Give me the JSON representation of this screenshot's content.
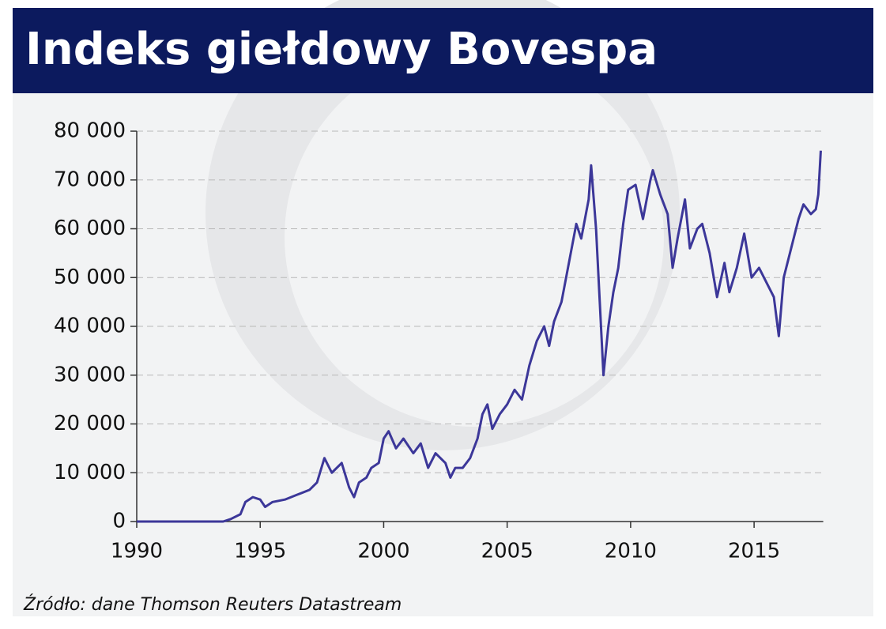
{
  "chart_data": {
    "type": "line",
    "title": "Indeks giełdowy Bovespa",
    "source": "Źródło: dane Thomson Reuters Datastream",
    "x": [
      1990,
      1993.5,
      1993.8,
      1994.2,
      1994.4,
      1994.7,
      1995.0,
      1995.2,
      1995.5,
      1996.0,
      1996.5,
      1997.0,
      1997.3,
      1997.6,
      1997.9,
      1998.3,
      1998.6,
      1998.8,
      1999.0,
      1999.3,
      1999.5,
      1999.8,
      2000.0,
      2000.2,
      2000.5,
      2000.8,
      2001.2,
      2001.5,
      2001.8,
      2002.1,
      2002.5,
      2002.7,
      2002.9,
      2003.2,
      2003.5,
      2003.8,
      2004.0,
      2004.2,
      2004.4,
      2004.7,
      2005.0,
      2005.3,
      2005.6,
      2005.9,
      2006.2,
      2006.5,
      2006.7,
      2006.9,
      2007.2,
      2007.5,
      2007.8,
      2008.0,
      2008.3,
      2008.4,
      2008.6,
      2008.8,
      2008.9,
      2009.1,
      2009.3,
      2009.5,
      2009.7,
      2009.9,
      2010.2,
      2010.5,
      2010.8,
      2010.9,
      2011.2,
      2011.5,
      2011.7,
      2011.9,
      2012.2,
      2012.4,
      2012.7,
      2012.9,
      2013.2,
      2013.5,
      2013.8,
      2014.0,
      2014.3,
      2014.6,
      2014.9,
      2015.2,
      2015.5,
      2015.8,
      2016.0,
      2016.2,
      2016.5,
      2016.8,
      2017.0,
      2017.3,
      2017.5,
      2017.6,
      2017.7
    ],
    "series": [
      {
        "color": "#3c3799",
        "values": [
          0,
          0,
          500,
          1500,
          4000,
          5000,
          4500,
          3000,
          4000,
          4500,
          5500,
          6500,
          8000,
          13000,
          10000,
          12000,
          7000,
          5000,
          8000,
          9000,
          11000,
          12000,
          17000,
          18500,
          15000,
          17000,
          14000,
          16000,
          11000,
          14000,
          12000,
          9000,
          11000,
          11000,
          13000,
          17000,
          22000,
          24000,
          19000,
          22000,
          24000,
          27000,
          25000,
          32000,
          37000,
          40000,
          36000,
          41000,
          45000,
          53000,
          61000,
          58000,
          66000,
          73000,
          60000,
          40000,
          30000,
          40000,
          47000,
          52000,
          61000,
          68000,
          69000,
          62000,
          70000,
          72000,
          67000,
          63000,
          52000,
          58000,
          66000,
          56000,
          60000,
          61000,
          55000,
          46000,
          53000,
          47000,
          52000,
          59000,
          50000,
          52000,
          49000,
          46000,
          38000,
          50000,
          56000,
          62000,
          65000,
          63000,
          64000,
          67000,
          76000
        ]
      }
    ],
    "xlim": [
      1990,
      2017.8
    ],
    "xticks": [
      1990,
      1995,
      2000,
      2005,
      2010,
      2015
    ],
    "ylim": [
      0,
      80000
    ],
    "yticks": [
      {
        "value": 0,
        "label": "0"
      },
      {
        "value": 10000,
        "label": "10 000"
      },
      {
        "value": 20000,
        "label": "20 000"
      },
      {
        "value": 30000,
        "label": "30 000"
      },
      {
        "value": 40000,
        "label": "40 000"
      },
      {
        "value": 50000,
        "label": "50 000"
      },
      {
        "value": 60000,
        "label": "60 000"
      },
      {
        "value": 70000,
        "label": "70 000"
      },
      {
        "value": 80000,
        "label": "80 000"
      }
    ],
    "grid": true
  }
}
